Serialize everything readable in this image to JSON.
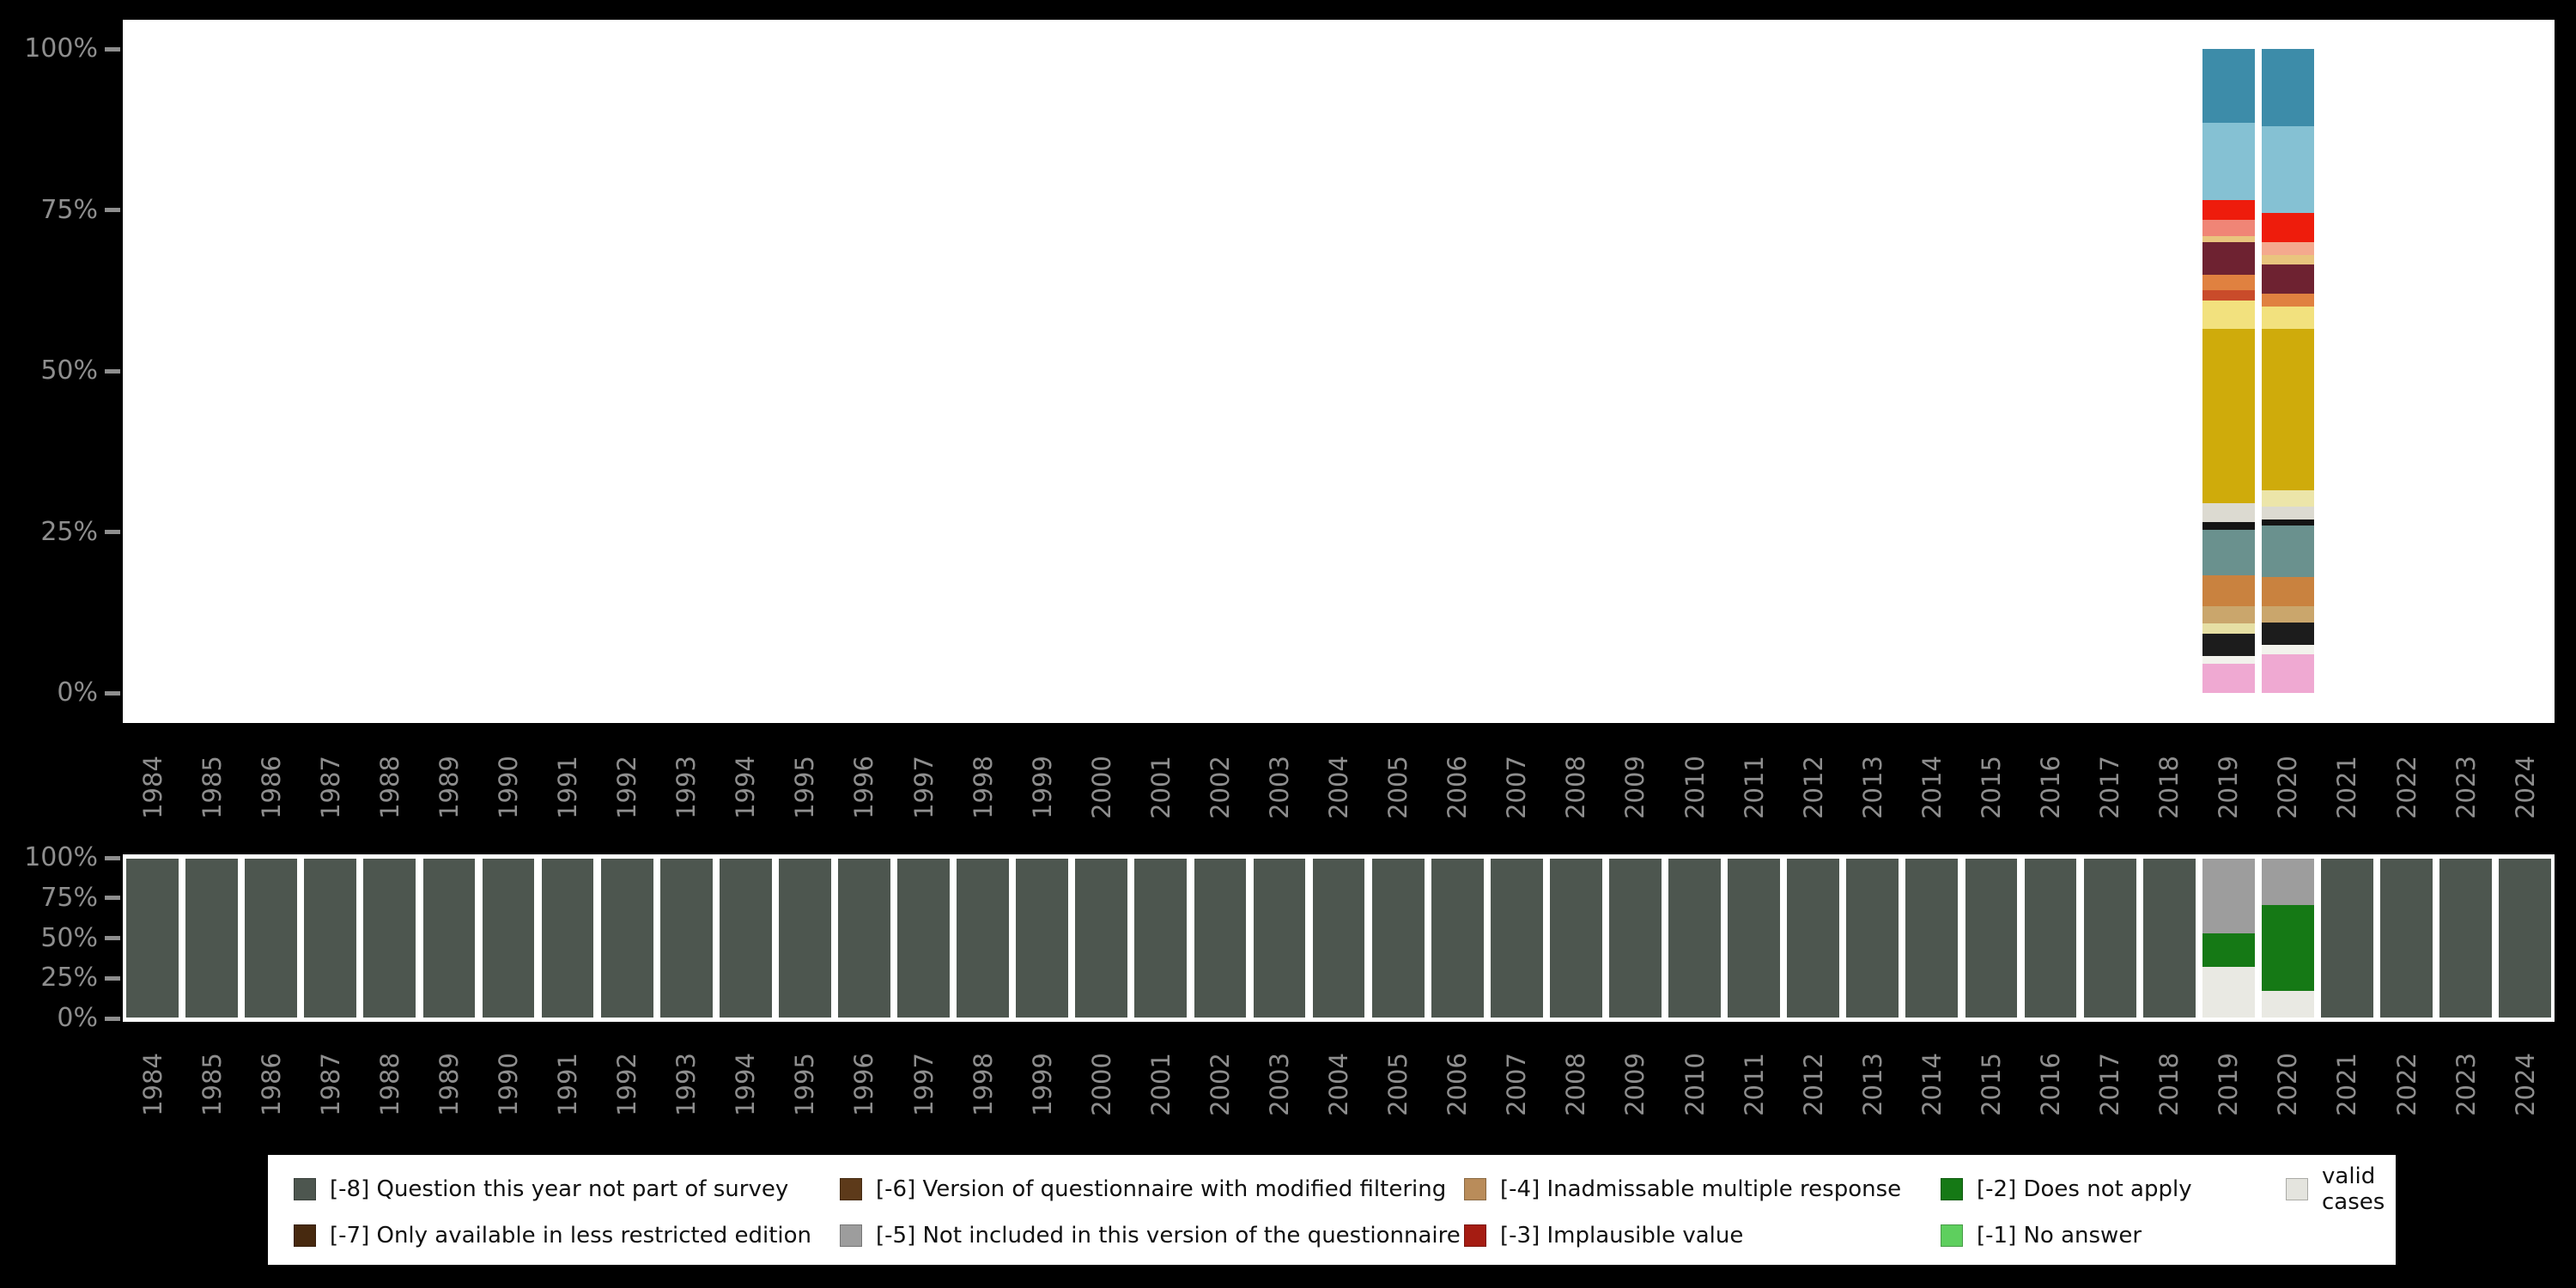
{
  "colors": {
    "background": "#000000",
    "panel": "#ffffff",
    "axis_text": "#8e8e8e"
  },
  "chart_data": [
    {
      "type": "bar",
      "id": "values-over-time",
      "stacked": true,
      "ylim": [
        0,
        100
      ],
      "grid": false,
      "y_ticks": [
        "100%",
        "75%",
        "50%",
        "25%",
        "0%"
      ],
      "x": [
        "1984",
        "1985",
        "1986",
        "1987",
        "1988",
        "1989",
        "1990",
        "1991",
        "1992",
        "1993",
        "1994",
        "1995",
        "1996",
        "1997",
        "1998",
        "1999",
        "2000",
        "2001",
        "2002",
        "2003",
        "2004",
        "2005",
        "2006",
        "2007",
        "2008",
        "2009",
        "2010",
        "2011",
        "2012",
        "2013",
        "2014",
        "2015",
        "2016",
        "2017",
        "2018",
        "2019",
        "2020",
        "2021",
        "2022",
        "2023",
        "2024"
      ],
      "bars": {
        "2019": [
          {
            "color": "#3d8ca9",
            "value": 11.5
          },
          {
            "color": "#85c1d3",
            "value": 12.0
          },
          {
            "color": "#ee1c0c",
            "value": 3.0
          },
          {
            "color": "#f08576",
            "value": 2.5
          },
          {
            "color": "#e9c57e",
            "value": 1.0
          },
          {
            "color": "#6e2231",
            "value": 5.0
          },
          {
            "color": "#e08140",
            "value": 2.5
          },
          {
            "color": "#c94b2a",
            "value": 1.5
          },
          {
            "color": "#f2e17e",
            "value": 4.5
          },
          {
            "color": "#cfab0b",
            "value": 27.0
          },
          {
            "color": "#dcdad1",
            "value": 3.0
          },
          {
            "color": "#141414",
            "value": 1.2
          },
          {
            "color": "#6a918e",
            "value": 7.0
          },
          {
            "color": "#c9823f",
            "value": 4.8
          },
          {
            "color": "#caa66c",
            "value": 2.7
          },
          {
            "color": "#e6dfa4",
            "value": 1.6
          },
          {
            "color": "#1c1c1c",
            "value": 3.4
          },
          {
            "color": "#f2f2ec",
            "value": 1.3
          },
          {
            "color": "#efa9d2",
            "value": 4.5
          }
        ],
        "2020": [
          {
            "color": "#3d8ca9",
            "value": 12.0
          },
          {
            "color": "#85c1d3",
            "value": 13.5
          },
          {
            "color": "#ee1c0c",
            "value": 4.5
          },
          {
            "color": "#f4a98e",
            "value": 2.0
          },
          {
            "color": "#e9c57e",
            "value": 1.5
          },
          {
            "color": "#6e2231",
            "value": 4.5
          },
          {
            "color": "#e08140",
            "value": 2.0
          },
          {
            "color": "#f2e17e",
            "value": 3.5
          },
          {
            "color": "#cfab0b",
            "value": 25.0
          },
          {
            "color": "#ece5a9",
            "value": 2.5
          },
          {
            "color": "#dcdad1",
            "value": 2.0
          },
          {
            "color": "#141414",
            "value": 1.0
          },
          {
            "color": "#6a918e",
            "value": 8.0
          },
          {
            "color": "#c9823f",
            "value": 4.5
          },
          {
            "color": "#caa66c",
            "value": 2.5
          },
          {
            "color": "#1c1c1c",
            "value": 3.5
          },
          {
            "color": "#f2f2ec",
            "value": 1.5
          },
          {
            "color": "#efa9d2",
            "value": 6.0
          }
        ]
      }
    },
    {
      "type": "bar",
      "id": "missing-values-over-time",
      "stacked": true,
      "ylim": [
        0,
        100
      ],
      "grid": false,
      "y_ticks": [
        "100%",
        "75%",
        "50%",
        "25%",
        "0%"
      ],
      "x": [
        "1984",
        "1985",
        "1986",
        "1987",
        "1988",
        "1989",
        "1990",
        "1991",
        "1992",
        "1993",
        "1994",
        "1995",
        "1996",
        "1997",
        "1998",
        "1999",
        "2000",
        "2001",
        "2002",
        "2003",
        "2004",
        "2005",
        "2006",
        "2007",
        "2008",
        "2009",
        "2010",
        "2011",
        "2012",
        "2013",
        "2014",
        "2015",
        "2016",
        "2017",
        "2018",
        "2019",
        "2020",
        "2021",
        "2022",
        "2023",
        "2024"
      ],
      "default_stack": [
        {
          "name": "segment-missing-8",
          "label": "[-8] Question this year not part of survey",
          "color": "#4d564f",
          "value": 100
        }
      ],
      "bars": {
        "2019": [
          {
            "name": "segment-missing-5",
            "label": "[-5] Not included in this version of the questionnaire",
            "color": "#9d9d9d",
            "value": 47
          },
          {
            "name": "segment-missing-2",
            "label": "[-2] Does not apply",
            "color": "#157915",
            "value": 21
          },
          {
            "name": "segment-valid-cases",
            "label": "valid cases",
            "color": "#e9e9e3",
            "value": 32
          }
        ],
        "2020": [
          {
            "name": "segment-missing-5",
            "label": "[-5] Not included in this version of the questionnaire",
            "color": "#9d9d9d",
            "value": 29
          },
          {
            "name": "segment-missing-2",
            "label": "[-2] Does not apply",
            "color": "#157915",
            "value": 54
          },
          {
            "name": "segment-valid-cases",
            "label": "valid cases",
            "color": "#e9e9e3",
            "value": 17
          }
        ]
      },
      "legend": {
        "position": "bottom",
        "items": [
          {
            "name": "missing-8",
            "label": "[-8] Question this year not part of survey",
            "color": "#4d564f"
          },
          {
            "name": "missing-7",
            "label": "[-7] Only available in less restricted edition",
            "color": "#47290f"
          },
          {
            "name": "missing-6",
            "label": "[-6] Version of questionnaire with modified filtering",
            "color": "#5d3a1a"
          },
          {
            "name": "missing-5",
            "label": "[-5] Not included in this version of the questionnaire",
            "color": "#9d9d9d"
          },
          {
            "name": "missing-4",
            "label": "[-4] Inadmissable multiple response",
            "color": "#b98c5a"
          },
          {
            "name": "missing-3",
            "label": "[-3] Implausible value",
            "color": "#a51c12"
          },
          {
            "name": "missing-2",
            "label": "[-2] Does not apply",
            "color": "#157915"
          },
          {
            "name": "missing-1",
            "label": "[-1] No answer",
            "color": "#5ecf5e"
          },
          {
            "name": "valid-cases",
            "label": "valid cases",
            "color": "#e4e4de"
          }
        ]
      }
    }
  ]
}
